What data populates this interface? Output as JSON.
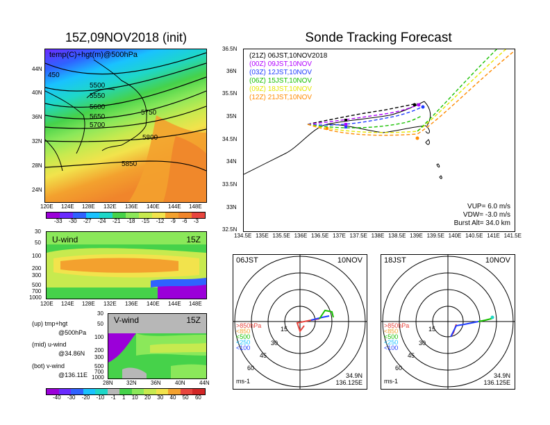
{
  "colors": {
    "purple": "#9b00d9",
    "violet": "#6a2bff",
    "blue": "#2f62ff",
    "cyan": "#19c2ff",
    "teal": "#1ed7c8",
    "green": "#46d24a",
    "ltgreen": "#8be85a",
    "yellowgreen": "#c7ea4f",
    "yellow": "#f2e34c",
    "orange": "#f3a12e",
    "dkorange": "#f0852b",
    "red": "#e8453e",
    "gray": "#b7b7b7",
    "track21": "#000000",
    "track00": "#b000ff",
    "track03": "#1e3cff",
    "track06": "#18c000",
    "track09": "#e6e600",
    "track12": "#ff8a00"
  },
  "left": {
    "title": "15Z,09NOV2018 (init)",
    "map_label": "temp(C)+hgt(m)@500hPa",
    "contours": [
      "450",
      "5500",
      "5550",
      "5600",
      "5650",
      "5700",
      "5750",
      "5800",
      "5850"
    ],
    "lat_ticks": [
      "44N",
      "40N",
      "36N",
      "32N",
      "28N",
      "24N"
    ],
    "lon_ticks": [
      "120E",
      "124E",
      "128E",
      "132E",
      "136E",
      "140E",
      "144E",
      "148E"
    ],
    "temp_scale": [
      "-33",
      "-30",
      "-27",
      "-24",
      "-21",
      "-18",
      "-15",
      "-12",
      "-9",
      "-6",
      "-3"
    ],
    "u_title": "U-wind",
    "u_time": "15Z",
    "p_ticks": [
      "30",
      "50",
      "100",
      "200",
      "300",
      "500",
      "700",
      "1000"
    ],
    "v_title": "V-wind",
    "v_time": "15Z",
    "v_lat_ticks": [
      "28N",
      "32N",
      "36N",
      "40N",
      "44N"
    ],
    "wind_scale": [
      "-40",
      "-30",
      "-20",
      "-10",
      "-1",
      "1",
      "10",
      "20",
      "30",
      "40",
      "50",
      "60"
    ],
    "legend": [
      {
        "a": "(up)",
        "b": "tmp+hgt",
        "c": "@500hPa"
      },
      {
        "a": "(mid)",
        "b": "u-wind",
        "c": "@34.86N"
      },
      {
        "a": "(bot)",
        "b": "v-wind",
        "c": "@136.11E"
      }
    ]
  },
  "right": {
    "title": "Sonde Tracking Forecast",
    "tracks": [
      {
        "code": "(21Z)",
        "label": "06JST,10NOV2018",
        "color": "#000000"
      },
      {
        "code": "(00Z)",
        "label": "09JST,10NOV",
        "color": "#b000ff"
      },
      {
        "code": "(03Z)",
        "label": "12JST,10NOV",
        "color": "#1e3cff"
      },
      {
        "code": "(06Z)",
        "label": "15JST,10NOV",
        "color": "#18c000"
      },
      {
        "code": "(09Z)",
        "label": "18JST,10NOV",
        "color": "#e6e600"
      },
      {
        "code": "(12Z)",
        "label": "21JST,10NOV",
        "color": "#ff8a00"
      }
    ],
    "lat_ticks": [
      "36.5N",
      "36N",
      "35.5N",
      "35N",
      "34.5N",
      "34N",
      "33.5N",
      "33N",
      "32.5N"
    ],
    "lon_ticks": [
      "134.5E",
      "135E",
      "135.5E",
      "136E",
      "136.5E",
      "137E",
      "137.5E",
      "138E",
      "138.5E",
      "139E",
      "139.5E",
      "140E",
      "140.5E",
      "141E",
      "141.5E"
    ],
    "vup": "VUP= 6.0 m/s",
    "vdw": "VDW= -3.0 m/s",
    "burst": "Burst Alt= 34.0 km"
  },
  "polar": [
    {
      "time": "06JST",
      "date": "10NOV",
      "rings": [
        "15",
        "30",
        "45",
        "60"
      ],
      "units": "ms-1",
      "lat": "34.9N",
      "lon": "136.125E",
      "levels": [
        ">850hPa",
        "<850",
        "<500",
        "<250",
        "<100"
      ]
    },
    {
      "time": "18JST",
      "date": "10NOV",
      "rings": [
        "15",
        "30",
        "45",
        "60"
      ],
      "units": "ms-1",
      "lat": "34.9N",
      "lon": "136.125E",
      "levels": [
        ">850hPa",
        "<850",
        "<500",
        "<250",
        "<100"
      ]
    }
  ]
}
